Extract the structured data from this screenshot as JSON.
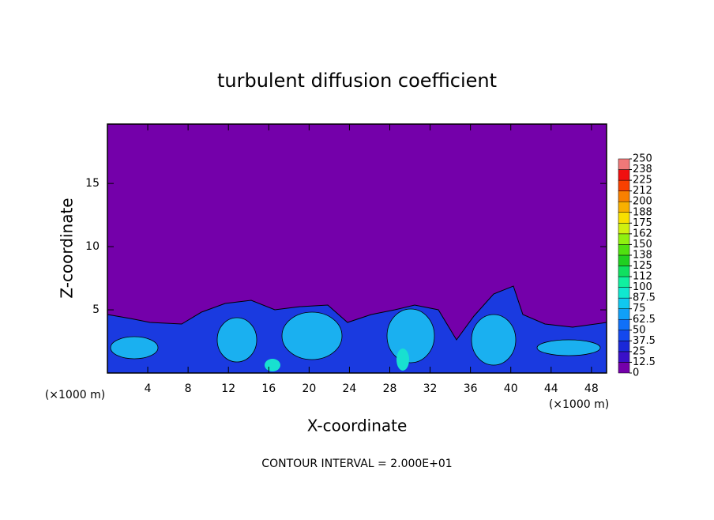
{
  "chart_data": {
    "type": "contour",
    "title": "turbulent diffusion coefficient",
    "x_label": "X-coordinate",
    "y_label": "Z-coordinate",
    "x_unit_left": "(×1000 m)",
    "x_unit_right": "(×1000 m)",
    "footer": "CONTOUR INTERVAL = 2.000E+01",
    "xlim": [
      0,
      49.5
    ],
    "xticks": [
      4,
      8,
      12,
      16,
      20,
      24,
      28,
      32,
      36,
      40,
      44,
      48
    ],
    "ylim": [
      0,
      19.7
    ],
    "yticks": [
      5,
      10,
      15
    ],
    "colorbar": {
      "ticks": [
        0,
        12.5,
        25,
        37.5,
        50,
        62.5,
        75,
        87.5,
        100,
        {
          "value": 112.5,
          "label": "112"
        },
        125,
        {
          "value": 137.5,
          "label": "138"
        },
        150,
        {
          "value": 162.5,
          "label": "162"
        },
        175,
        {
          "value": 187.5,
          "label": "188"
        },
        200,
        {
          "value": 212.5,
          "label": "212"
        },
        225,
        {
          "value": 237.5,
          "label": "238"
        },
        250
      ],
      "colors": [
        "#7400aa",
        "#3a10c8",
        "#1a28d8",
        "#1448ee",
        "#1070f8",
        "#10a0f8",
        "#10c8f0",
        "#10e8d0",
        "#10f0a0",
        "#10e060",
        "#20d020",
        "#50e010",
        "#90f010",
        "#d0f010",
        "#f8e000",
        "#f8b000",
        "#f88000",
        "#f84000",
        "#f01010",
        "#f07878"
      ]
    }
  }
}
